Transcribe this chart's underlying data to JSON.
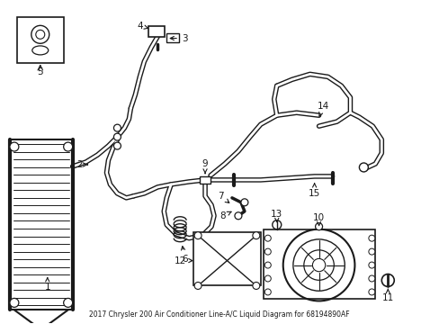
{
  "title": "2017 Chrysler 200 Air Conditioner Line-A/C Liquid Diagram for 68194890AF",
  "bg_color": "#ffffff",
  "line_color": "#1a1a1a",
  "fig_width": 4.89,
  "fig_height": 3.6,
  "dpi": 100
}
